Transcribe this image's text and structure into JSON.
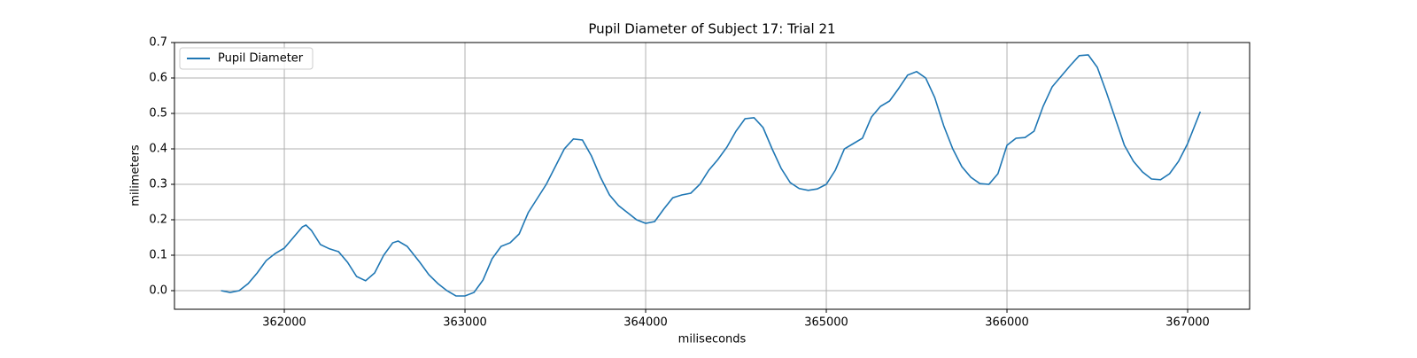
{
  "chart_data": {
    "type": "line",
    "title": "Pupil Diameter of Subject 17: Trial 21",
    "x_label": "miliseconds",
    "y_label": "milimeters",
    "x": [
      361650,
      361700,
      361750,
      361800,
      361850,
      361900,
      361950,
      362000,
      362050,
      362100,
      362120,
      362150,
      362200,
      362250,
      362300,
      362350,
      362400,
      362450,
      362500,
      362550,
      362600,
      362630,
      362680,
      362750,
      362800,
      362850,
      362900,
      362950,
      363000,
      363050,
      363100,
      363150,
      363200,
      363250,
      363300,
      363350,
      363400,
      363450,
      363500,
      363550,
      363600,
      363650,
      363700,
      363750,
      363800,
      363850,
      363900,
      363950,
      364000,
      364050,
      364100,
      364150,
      364200,
      364250,
      364300,
      364350,
      364400,
      364450,
      364500,
      364550,
      364600,
      364650,
      364700,
      364750,
      364800,
      364850,
      364900,
      364950,
      365000,
      365050,
      365100,
      365150,
      365200,
      365250,
      365300,
      365350,
      365400,
      365450,
      365500,
      365550,
      365600,
      365650,
      365700,
      365750,
      365800,
      365850,
      365900,
      365950,
      366000,
      366050,
      366100,
      366150,
      366200,
      366250,
      366300,
      366350,
      366400,
      366450,
      366500,
      366550,
      366600,
      366650,
      366700,
      366750,
      366800,
      366850,
      366900,
      366950,
      367000,
      367070
    ],
    "series": [
      {
        "name": "Pupil Diameter",
        "color": "#1f77b4",
        "values": [
          0.0,
          -0.005,
          0.0,
          0.02,
          0.05,
          0.085,
          0.105,
          0.12,
          0.15,
          0.18,
          0.185,
          0.17,
          0.13,
          0.118,
          0.11,
          0.08,
          0.04,
          0.028,
          0.05,
          0.1,
          0.135,
          0.14,
          0.125,
          0.08,
          0.045,
          0.02,
          0.0,
          -0.015,
          -0.015,
          -0.005,
          0.03,
          0.09,
          0.125,
          0.135,
          0.16,
          0.22,
          0.26,
          0.3,
          0.35,
          0.4,
          0.428,
          0.425,
          0.38,
          0.32,
          0.27,
          0.24,
          0.22,
          0.2,
          0.19,
          0.195,
          0.23,
          0.262,
          0.27,
          0.275,
          0.3,
          0.34,
          0.37,
          0.405,
          0.45,
          0.485,
          0.488,
          0.46,
          0.4,
          0.345,
          0.305,
          0.288,
          0.283,
          0.287,
          0.3,
          0.34,
          0.4,
          0.415,
          0.43,
          0.49,
          0.52,
          0.535,
          0.57,
          0.608,
          0.618,
          0.6,
          0.545,
          0.465,
          0.4,
          0.35,
          0.32,
          0.302,
          0.3,
          0.33,
          0.41,
          0.43,
          0.432,
          0.45,
          0.52,
          0.575,
          0.605,
          0.635,
          0.663,
          0.665,
          0.63,
          0.56,
          0.485,
          0.41,
          0.365,
          0.335,
          0.315,
          0.313,
          0.33,
          0.365,
          0.415,
          0.505
        ]
      }
    ],
    "xlim": [
      361392,
      367343
    ],
    "ylim": [
      -0.0525,
      0.7
    ],
    "xticks": [
      362000,
      363000,
      364000,
      365000,
      366000,
      367000
    ],
    "yticks": [
      {
        "value": 0,
        "label": "0.0"
      },
      0.1,
      0.2,
      0.3,
      0.4,
      0.5,
      0.6,
      0.7
    ],
    "grid": true,
    "legend": "upper left"
  }
}
